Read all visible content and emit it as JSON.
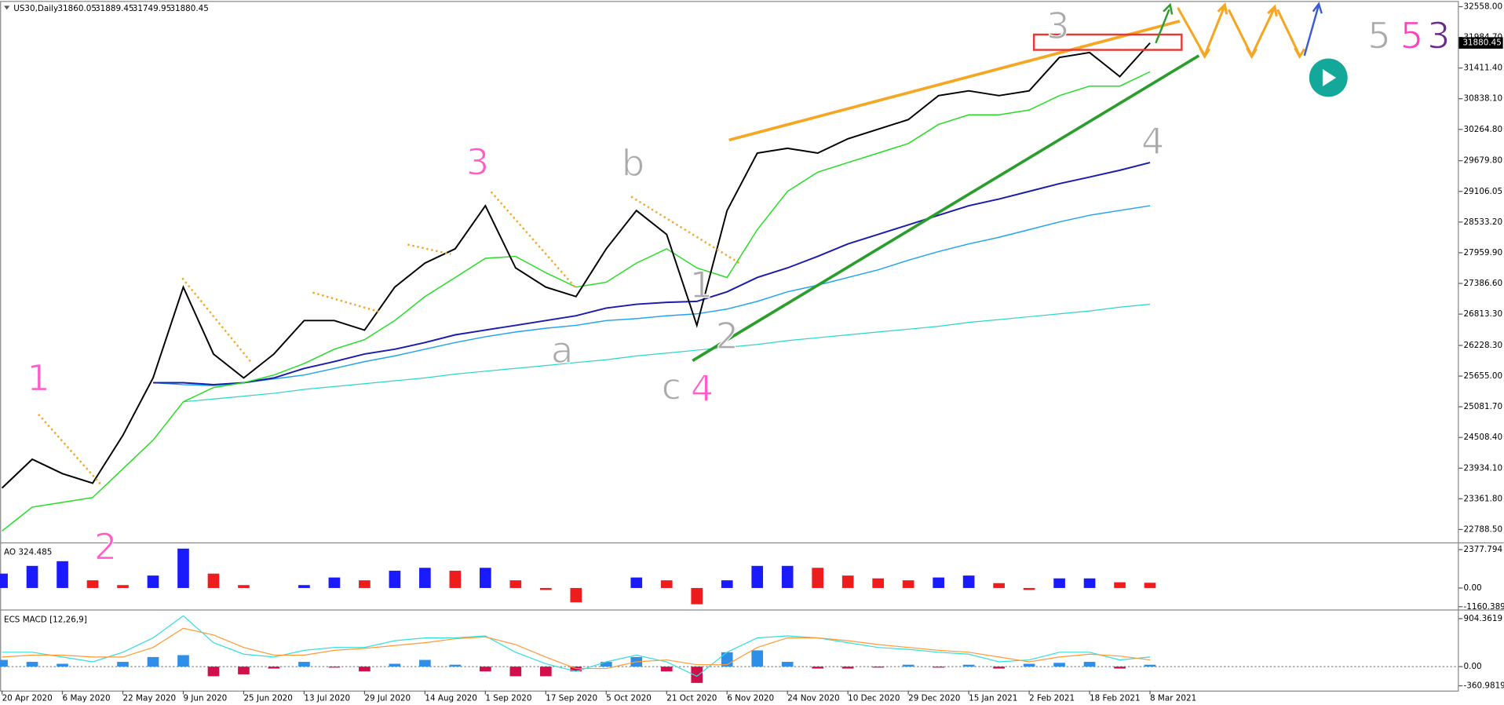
{
  "chart_data": [
    {
      "type": "line",
      "symbol": "US30,Daily",
      "ohlc": [
        31860.05,
        31889.45,
        31749.95,
        31880.45
      ],
      "categories": [
        "20 Apr 2020",
        null,
        "6 May 2020",
        null,
        "22 May 2020",
        null,
        "9 Jun 2020",
        null,
        "25 Jun 2020",
        null,
        "13 Jul 2020",
        null,
        "29 Jul 2020",
        null,
        "14 Aug 2020",
        null,
        "1 Sep 2020",
        null,
        "17 Sep 2020",
        null,
        "5 Oct 2020",
        null,
        "21 Oct 2020",
        null,
        "6 Nov 2020",
        null,
        "24 Nov 2020",
        null,
        "10 Dec 2020",
        null,
        "29 Dec 2020",
        null,
        "15 Jan 2021",
        null,
        "2 Feb 2021",
        null,
        "18 Feb 2021",
        null,
        "8 Mar 2021"
      ],
      "ylim": [
        22556,
        32647
      ],
      "yticks": [
        {
          "value": 32558,
          "label": "32558.00"
        },
        {
          "value": 31984.7,
          "label": "31984.70"
        },
        {
          "value": 31411.4,
          "label": "31411.40"
        },
        {
          "value": 30838.1,
          "label": "30838.10"
        },
        {
          "value": 30264.8,
          "label": "30264.80"
        },
        {
          "value": 29679.8,
          "label": "29679.80"
        },
        29106.05,
        {
          "value": 28533.2,
          "label": "28533.20"
        },
        {
          "value": 27959.9,
          "label": "27959.90"
        },
        {
          "value": 27386.6,
          "label": "27386.60"
        },
        {
          "value": 26813.3,
          "label": "26813.30"
        },
        {
          "value": 26228.3,
          "label": "26228.30"
        },
        {
          "value": 25655,
          "label": "25655.00"
        },
        {
          "value": 25081.7,
          "label": "25081.70"
        },
        {
          "value": 24508.4,
          "label": "24508.40"
        },
        {
          "value": 23934.1,
          "label": "23934.10"
        },
        {
          "value": 23361.8,
          "label": "23361.80"
        },
        {
          "value": 22788.5,
          "label": "22788.50"
        }
      ],
      "series": [
        {
          "color": "#2ad6c8",
          "width": 1,
          "values": [
            null,
            null,
            null,
            null,
            null,
            null,
            25174,
            25227,
            25281,
            25334,
            25406,
            25460,
            25513,
            25567,
            25621,
            25692,
            25746,
            25799,
            25853,
            25907,
            25960,
            26032,
            26085,
            26139,
            26193,
            26246,
            26318,
            26372,
            26425,
            26479,
            26532,
            26586,
            26658,
            26711,
            26765,
            26819,
            26872,
            26944,
            26997
          ]
        },
        {
          "color": "#1ea4ec",
          "width": 1.2,
          "values": [
            null,
            null,
            null,
            null,
            null,
            25531,
            25495,
            25477,
            25531,
            25603,
            25674,
            25799,
            25925,
            26032,
            26157,
            26282,
            26390,
            26479,
            26550,
            26604,
            26693,
            26729,
            26783,
            26819,
            26908,
            27051,
            27230,
            27355,
            27498,
            27641,
            27820,
            27981,
            28124,
            28249,
            28392,
            28535,
            28660,
            28750,
            28839
          ]
        },
        {
          "color": "#1c1caa",
          "width": 1.6,
          "values": [
            null,
            null,
            null,
            null,
            null,
            25531,
            25531,
            25495,
            25531,
            25621,
            25799,
            25925,
            26068,
            26157,
            26282,
            26425,
            26515,
            26604,
            26693,
            26783,
            26926,
            26997,
            27033,
            27051,
            27230,
            27498,
            27677,
            27891,
            28124,
            28303,
            28481,
            28660,
            28839,
            28964,
            29107,
            29250,
            29375,
            29501,
            29644
          ]
        },
        {
          "color": "#22dd22",
          "width": 1.2,
          "values": [
            22760,
            23207,
            23296,
            23386,
            23922,
            24458,
            25174,
            25442,
            25531,
            25674,
            25889,
            26157,
            26336,
            26693,
            27140,
            27498,
            27856,
            27891,
            27587,
            27319,
            27409,
            27766,
            28034,
            27677,
            27498,
            28392,
            29107,
            29465,
            29644,
            29822,
            30001,
            30359,
            30538,
            30538,
            30627,
            30895,
            31074,
            31074,
            31342
          ]
        },
        {
          "color": "#000000",
          "width": 1.6,
          "values": [
            23564,
            24101,
            23833,
            23654,
            24547,
            25621,
            27319,
            26067,
            25621,
            26067,
            26693,
            26693,
            26514,
            27319,
            27766,
            28034,
            28839,
            27677,
            27319,
            27141,
            28034,
            28749,
            28302,
            26604,
            28749,
            29822,
            29912,
            29822,
            30090,
            30269,
            30448,
            30895,
            30985,
            30895,
            30985,
            31610,
            31700,
            31253,
            31880.45
          ]
        }
      ],
      "annotations": [
        "1",
        "2",
        "3",
        "b",
        "a",
        "c",
        "4",
        "1",
        "2",
        "3",
        "4",
        "5",
        "5",
        "3"
      ]
    },
    {
      "type": "bar",
      "title": "AO 324.485",
      "color_rule": "change",
      "up_color": "#1a1aff",
      "down_color": "#ee1c1c",
      "ylim": [
        -1308,
        2735
      ],
      "yticks": [
        2377.794,
        {
          "value": 0,
          "label": "0.00"
        },
        -1160.389
      ],
      "values": [
        890,
        1370,
        1660,
        475,
        180,
        770,
        2440,
        890,
        180,
        0,
        180,
        650,
        475,
        1070,
        1250,
        1070,
        1250,
        475,
        -120,
        -890,
        0,
        650,
        475,
        -1010,
        475,
        1370,
        1370,
        1250,
        770,
        595,
        475,
        650,
        770,
        300,
        -120,
        595,
        595,
        355,
        324.485
      ]
    },
    {
      "type": "bar",
      "title": "ECS MACD [12,26,9]",
      "color_rule": "sign",
      "up_color": "#2f8fe8",
      "down_color": "#d0104a",
      "zero_line": true,
      "ylim": [
        -452,
        1049
      ],
      "yticks": [
        904.3619,
        {
          "value": 0,
          "label": "0.00"
        },
        -360.9819
      ],
      "values": [
        127,
        90,
        54,
        0,
        90,
        181,
        217,
        -181,
        -145,
        -36,
        90,
        -18,
        -90,
        54,
        127,
        36,
        -90,
        -181,
        -181,
        -90,
        90,
        181,
        -90,
        -307,
        271,
        307,
        90,
        -36,
        -36,
        -18,
        36,
        -18,
        36,
        -36,
        54,
        72,
        90,
        -36,
        36
      ],
      "series": [
        {
          "color": "#33dddd",
          "width": 1,
          "values": [
            271,
            271,
            181,
            90,
            271,
            543,
            959,
            452,
            235,
            181,
            307,
            362,
            362,
            488,
            543,
            543,
            579,
            271,
            54,
            -90,
            90,
            217,
            90,
            -181,
            271,
            543,
            579,
            543,
            452,
            362,
            326,
            271,
            235,
            90,
            127,
            271,
            271,
            127,
            181
          ]
        },
        {
          "color": "#ff9933",
          "width": 1,
          "values": [
            181,
            217,
            217,
            181,
            181,
            362,
            723,
            597,
            362,
            217,
            217,
            307,
            344,
            398,
            452,
            525,
            561,
            416,
            181,
            -36,
            -36,
            90,
            127,
            36,
            36,
            362,
            543,
            543,
            488,
            416,
            362,
            307,
            271,
            181,
            90,
            181,
            235,
            199,
            127
          ]
        }
      ]
    }
  ]
}
